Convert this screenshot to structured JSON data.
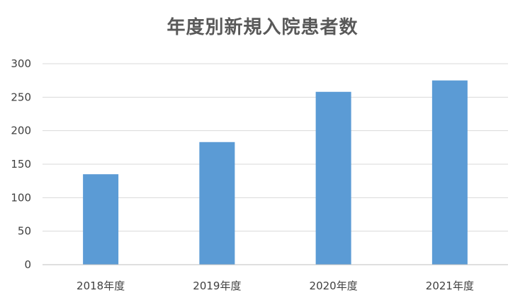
{
  "chart_data": {
    "type": "bar",
    "title": "年度別新規入院患者数",
    "xlabel": "",
    "ylabel": "",
    "categories": [
      "2018年度",
      "2019年度",
      "2020年度",
      "2021年度"
    ],
    "values": [
      135,
      183,
      258,
      275
    ],
    "ylim": [
      0,
      300
    ],
    "yticks": [
      "0",
      "50",
      "100",
      "150",
      "200",
      "250",
      "300"
    ],
    "grid": true,
    "legend": "none",
    "bar_color": "#5B9BD5",
    "grid_color": "#D9D9D9"
  }
}
